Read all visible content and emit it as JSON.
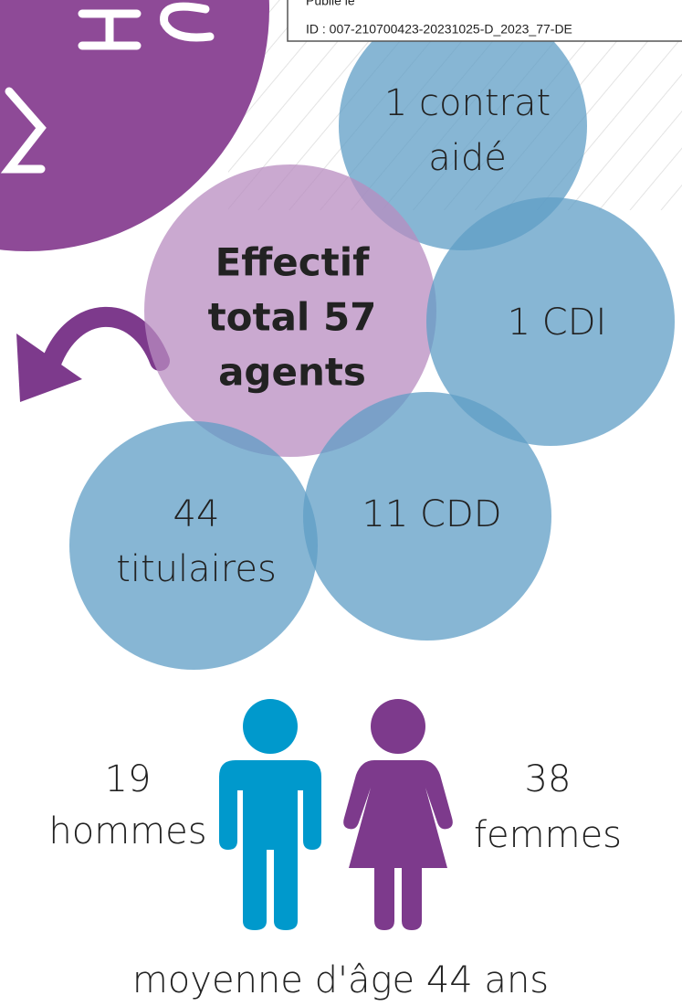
{
  "stamp": {
    "published": "Publié le",
    "id": "ID : 007-210700423-20231025-D_2023_77-DE"
  },
  "bubbles": [
    {
      "lines": [
        "1 contrat",
        "aidé"
      ]
    },
    {
      "lines": [
        "Effectif",
        "total 57",
        "agents"
      ]
    },
    {
      "lines": [
        "1 CDI"
      ]
    },
    {
      "lines": [
        "44",
        "titulaires"
      ]
    },
    {
      "lines": [
        "11 CDD"
      ]
    }
  ],
  "men": {
    "count": "19",
    "label": "hommes"
  },
  "women": {
    "count": "38",
    "label": "femmes"
  },
  "average_age": "moyenne d'âge 44 ans"
}
